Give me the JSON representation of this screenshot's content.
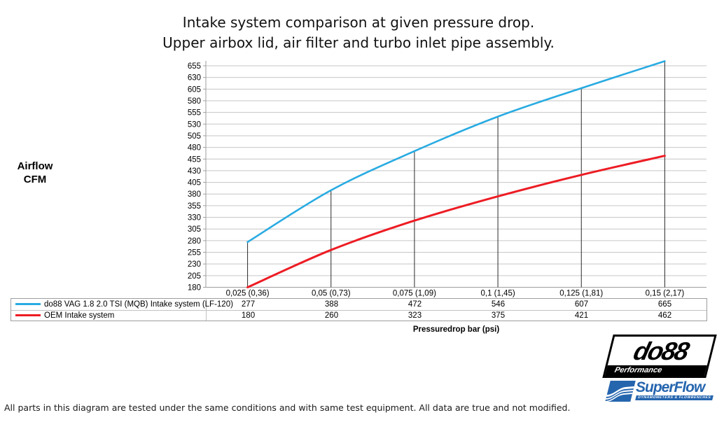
{
  "title": {
    "line1": "Intake system comparison at given pressure drop.",
    "line2": "Upper airbox lid, air filter and turbo inlet pipe assembly."
  },
  "y_axis_label": {
    "line1": "Airflow",
    "line2": "CFM"
  },
  "x_axis_label": "Pressuredrop bar (psi)",
  "footnote": "All parts in this diagram are tested under the same conditions and with same test equipment. All data are true and not modified.",
  "logos": {
    "do88": {
      "name": "do88",
      "sub": "Performance"
    },
    "superflow": {
      "name": "SuperFlow",
      "sub": "DYNAMOMETERS & FLOWBENCHES"
    }
  },
  "chart_data": {
    "type": "line",
    "title": "Intake system comparison at given pressure drop. Upper airbox lid, air filter and turbo inlet pipe assembly.",
    "xlabel": "Pressuredrop bar (psi)",
    "ylabel": "Airflow CFM",
    "categories": [
      "0,025 (0,36)",
      "0,05 (0,73)",
      "0,075 (1,09)",
      "0,1 (1,45)",
      "0,125 (1,81)",
      "0,15 (2,17)"
    ],
    "series": [
      {
        "name": "do88 VAG 1.8 2.0 TSI (MQB) Intake system (LF-120)",
        "color": "#29abe2",
        "values": [
          277,
          388,
          472,
          546,
          607,
          665
        ]
      },
      {
        "name": "OEM Intake system",
        "color": "#ed1c24",
        "values": [
          180,
          260,
          323,
          375,
          421,
          462
        ]
      }
    ],
    "ylim": [
      180,
      655
    ],
    "ytick_step": 25,
    "grid": true,
    "drop_lines": true,
    "legend_position": "table-left",
    "colors": {
      "gridline": "#c6c6c6",
      "axis": "#9e9e9e",
      "dropline": "#2a2a2a"
    }
  }
}
